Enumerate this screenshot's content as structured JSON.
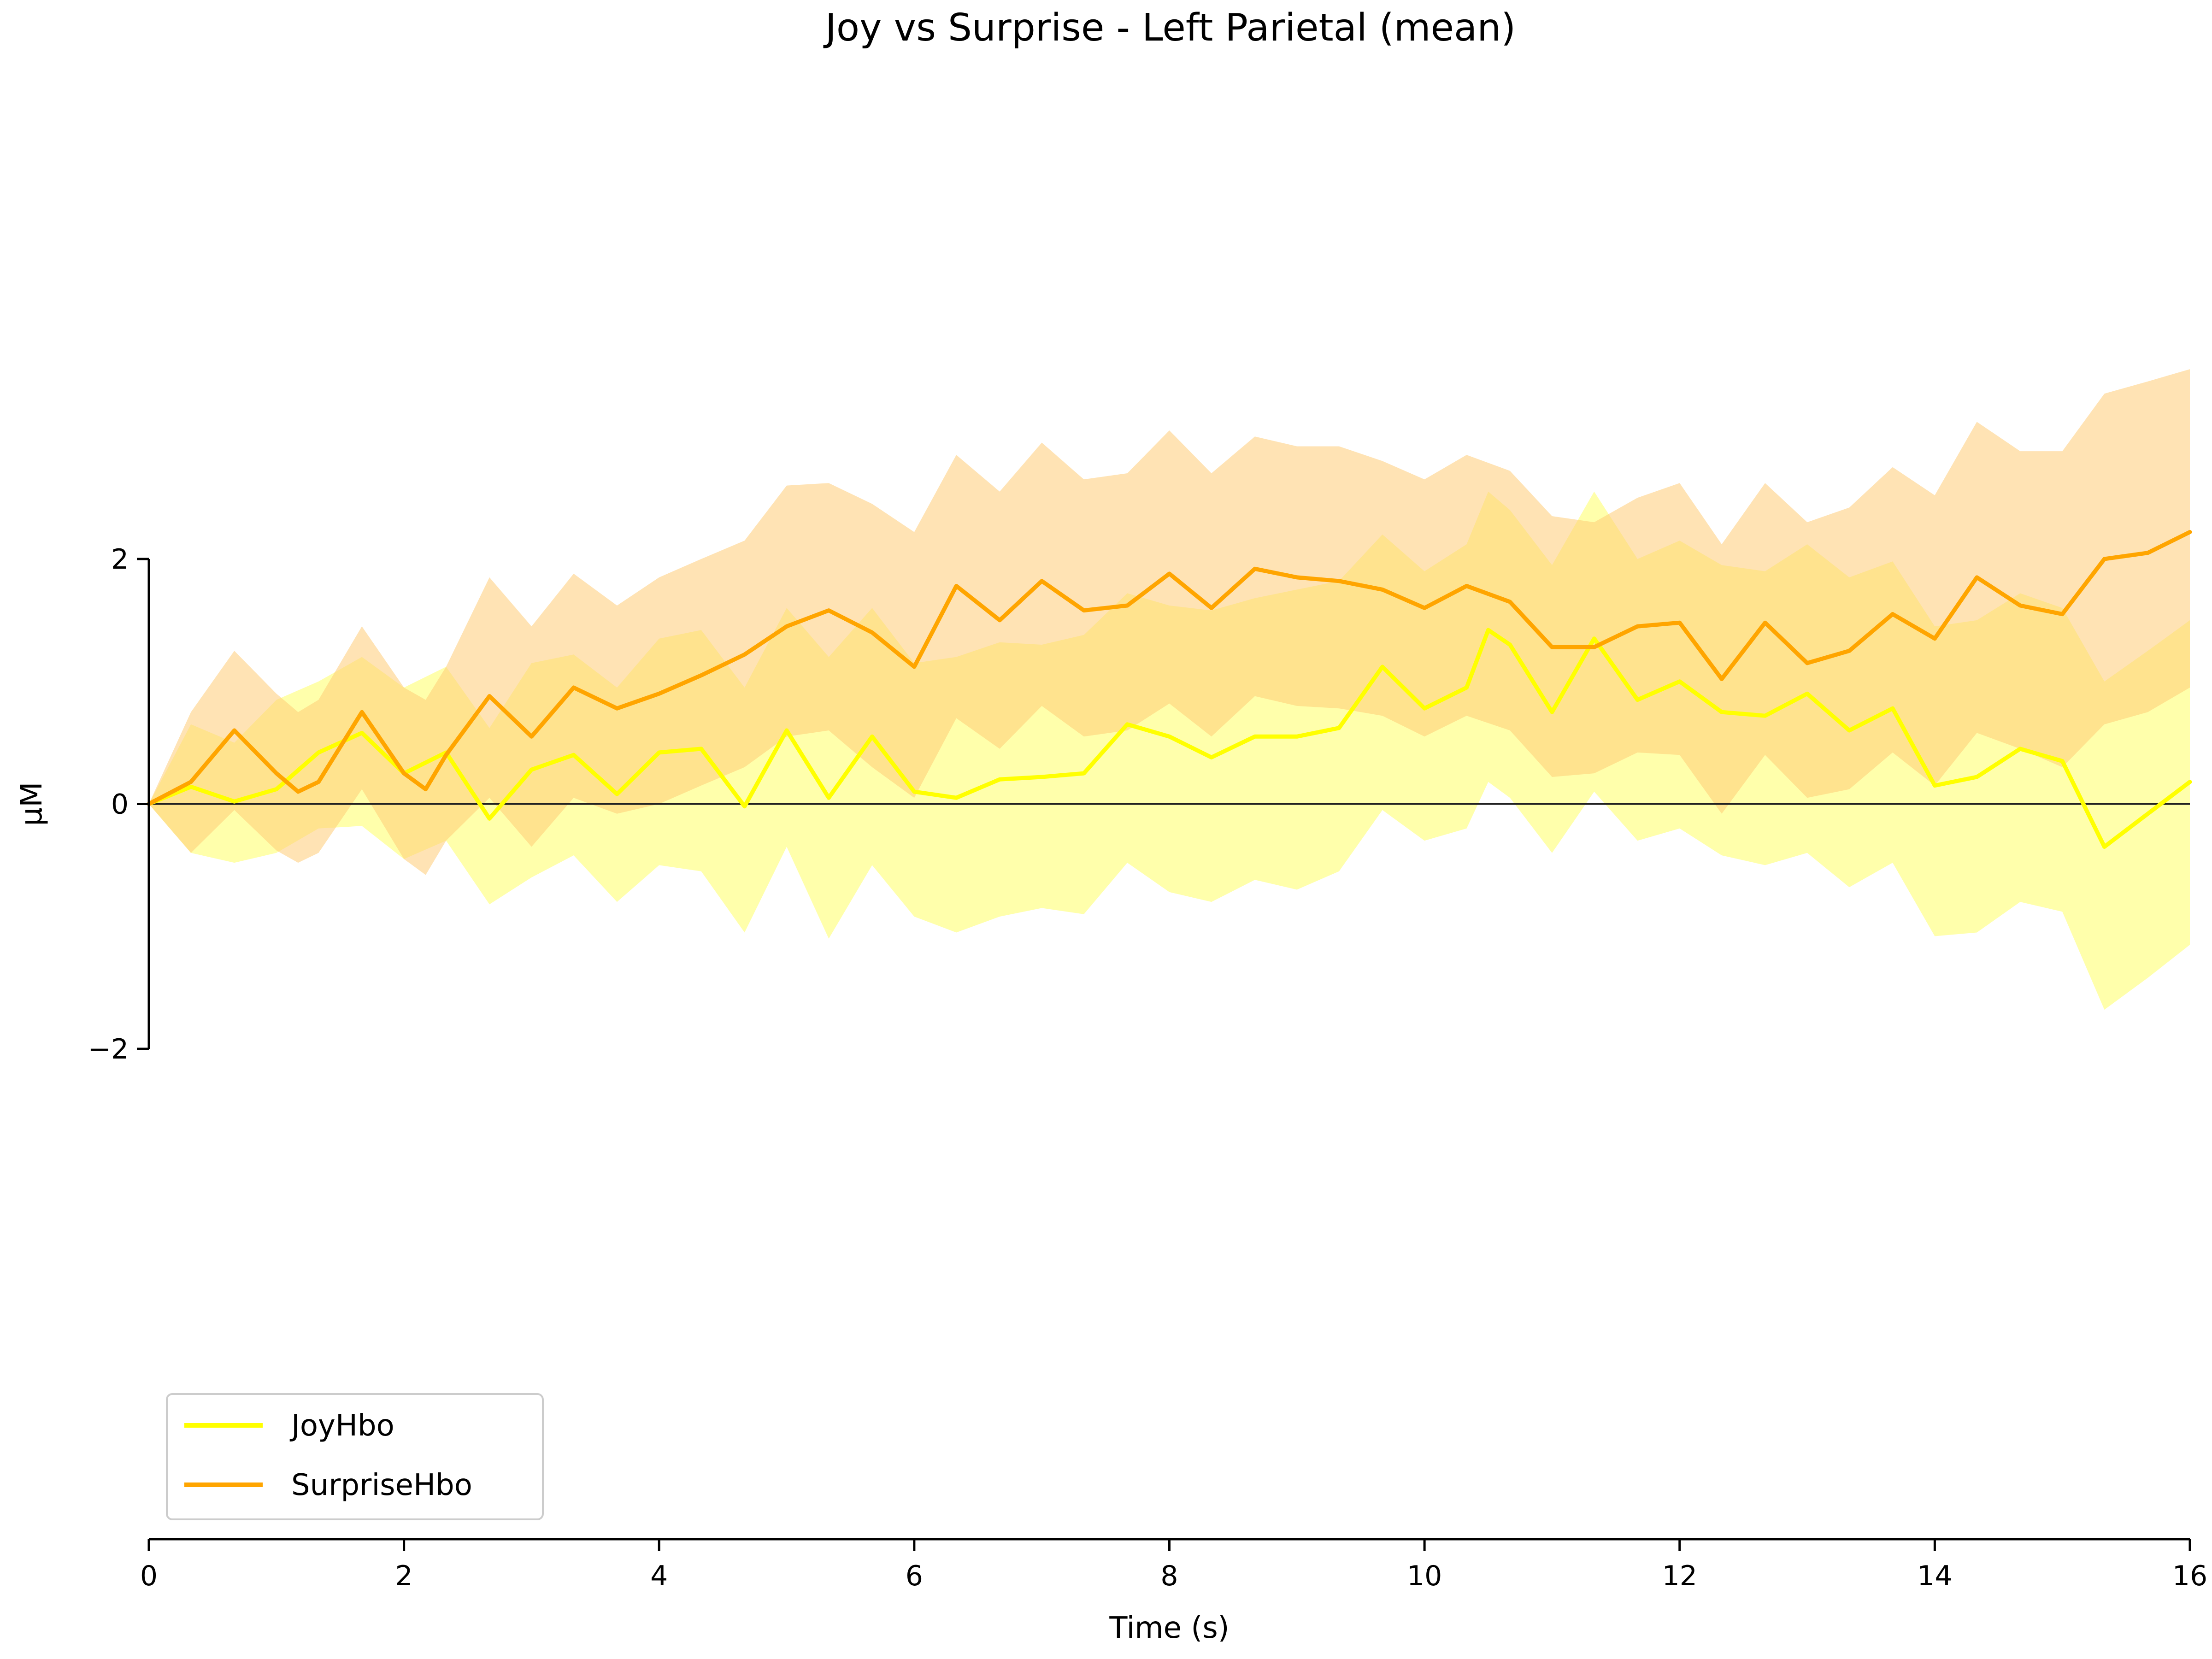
{
  "chart_data": {
    "type": "line",
    "title": "Joy vs Surprise - Left Parietal (mean)",
    "xlabel": "Time (s)",
    "ylabel": "µM",
    "xlim": [
      0,
      16
    ],
    "ylim": [
      -2,
      2
    ],
    "x_ticks": [
      "0",
      "2",
      "4",
      "6",
      "8",
      "10",
      "12",
      "14",
      "16"
    ],
    "y_ticks": [
      "−2",
      "0",
      "2"
    ],
    "zero_line": true,
    "grid": false,
    "legend": {
      "position": "bottom-left"
    },
    "series": [
      {
        "name": "JoyHbo",
        "color": "#ffff00",
        "band_color": "#ffff66",
        "points": [
          [
            0,
            0
          ],
          [
            0.33,
            0.14
          ],
          [
            0.67,
            0.02
          ],
          [
            1,
            0.12
          ],
          [
            1.33,
            0.42
          ],
          [
            1.67,
            0.58
          ],
          [
            2,
            0.25
          ],
          [
            2.33,
            0.42
          ],
          [
            2.67,
            -0.12
          ],
          [
            3,
            0.28
          ],
          [
            3.33,
            0.4
          ],
          [
            3.67,
            0.08
          ],
          [
            4,
            0.42
          ],
          [
            4.33,
            0.45
          ],
          [
            4.67,
            -0.02
          ],
          [
            5,
            0.6
          ],
          [
            5.33,
            0.05
          ],
          [
            5.67,
            0.55
          ],
          [
            6,
            0.1
          ],
          [
            6.33,
            0.05
          ],
          [
            6.67,
            0.2
          ],
          [
            7,
            0.22
          ],
          [
            7.33,
            0.25
          ],
          [
            7.67,
            0.65
          ],
          [
            8,
            0.55
          ],
          [
            8.33,
            0.38
          ],
          [
            8.67,
            0.55
          ],
          [
            9,
            0.55
          ],
          [
            9.33,
            0.62
          ],
          [
            9.67,
            1.12
          ],
          [
            10,
            0.78
          ],
          [
            10.33,
            0.95
          ],
          [
            10.5,
            1.42
          ],
          [
            10.67,
            1.3
          ],
          [
            11,
            0.75
          ],
          [
            11.33,
            1.35
          ],
          [
            11.67,
            0.85
          ],
          [
            12,
            1.0
          ],
          [
            12.33,
            0.75
          ],
          [
            12.67,
            0.72
          ],
          [
            13,
            0.9
          ],
          [
            13.33,
            0.6
          ],
          [
            13.67,
            0.78
          ],
          [
            14,
            0.15
          ],
          [
            14.33,
            0.22
          ],
          [
            14.67,
            0.45
          ],
          [
            15,
            0.35
          ],
          [
            15.33,
            -0.35
          ],
          [
            15.67,
            -0.08
          ],
          [
            16,
            0.18
          ]
        ],
        "band": [
          [
            0,
            0,
            0
          ],
          [
            0.33,
            -0.4,
            0.65
          ],
          [
            0.67,
            -0.48,
            0.5
          ],
          [
            1,
            -0.4,
            0.85
          ],
          [
            1.33,
            -0.2,
            1.0
          ],
          [
            1.67,
            -0.18,
            1.2
          ],
          [
            2,
            -0.45,
            0.95
          ],
          [
            2.33,
            -0.3,
            1.12
          ],
          [
            2.67,
            -0.82,
            0.62
          ],
          [
            3,
            -0.6,
            1.15
          ],
          [
            3.33,
            -0.42,
            1.22
          ],
          [
            3.67,
            -0.8,
            0.95
          ],
          [
            4,
            -0.5,
            1.35
          ],
          [
            4.33,
            -0.55,
            1.42
          ],
          [
            4.67,
            -1.05,
            0.95
          ],
          [
            5,
            -0.35,
            1.6
          ],
          [
            5.33,
            -1.1,
            1.2
          ],
          [
            5.67,
            -0.5,
            1.6
          ],
          [
            6,
            -0.92,
            1.15
          ],
          [
            6.33,
            -1.05,
            1.2
          ],
          [
            6.67,
            -0.92,
            1.32
          ],
          [
            7,
            -0.85,
            1.3
          ],
          [
            7.33,
            -0.9,
            1.38
          ],
          [
            7.67,
            -0.48,
            1.72
          ],
          [
            8,
            -0.72,
            1.62
          ],
          [
            8.33,
            -0.8,
            1.58
          ],
          [
            8.67,
            -0.62,
            1.68
          ],
          [
            9,
            -0.7,
            1.75
          ],
          [
            9.33,
            -0.55,
            1.82
          ],
          [
            9.67,
            -0.05,
            2.2
          ],
          [
            10,
            -0.3,
            1.9
          ],
          [
            10.33,
            -0.2,
            2.12
          ],
          [
            10.5,
            0.18,
            2.55
          ],
          [
            10.67,
            0.05,
            2.4
          ],
          [
            11,
            -0.4,
            1.95
          ],
          [
            11.33,
            0.1,
            2.55
          ],
          [
            11.67,
            -0.3,
            2.0
          ],
          [
            12,
            -0.2,
            2.15
          ],
          [
            12.33,
            -0.42,
            1.95
          ],
          [
            12.67,
            -0.5,
            1.9
          ],
          [
            13,
            -0.4,
            2.12
          ],
          [
            13.33,
            -0.68,
            1.85
          ],
          [
            13.67,
            -0.48,
            1.98
          ],
          [
            14,
            -1.08,
            1.45
          ],
          [
            14.33,
            -1.05,
            1.5
          ],
          [
            14.67,
            -0.8,
            1.72
          ],
          [
            15,
            -0.88,
            1.6
          ],
          [
            15.33,
            -1.68,
            1.0
          ],
          [
            15.67,
            -1.42,
            1.25
          ],
          [
            16,
            -1.15,
            1.5
          ]
        ]
      },
      {
        "name": "SurpriseHbo",
        "color": "#ffa500",
        "band_color": "#ffcc77",
        "points": [
          [
            0,
            0
          ],
          [
            0.33,
            0.18
          ],
          [
            0.67,
            0.6
          ],
          [
            1,
            0.25
          ],
          [
            1.17,
            0.1
          ],
          [
            1.33,
            0.18
          ],
          [
            1.67,
            0.75
          ],
          [
            2,
            0.25
          ],
          [
            2.17,
            0.12
          ],
          [
            2.33,
            0.4
          ],
          [
            2.67,
            0.88
          ],
          [
            3,
            0.55
          ],
          [
            3.33,
            0.95
          ],
          [
            3.67,
            0.78
          ],
          [
            4,
            0.9
          ],
          [
            4.33,
            1.05
          ],
          [
            4.67,
            1.22
          ],
          [
            5,
            1.45
          ],
          [
            5.33,
            1.58
          ],
          [
            5.67,
            1.4
          ],
          [
            6,
            1.12
          ],
          [
            6.33,
            1.78
          ],
          [
            6.67,
            1.5
          ],
          [
            7,
            1.82
          ],
          [
            7.33,
            1.58
          ],
          [
            7.67,
            1.62
          ],
          [
            8,
            1.88
          ],
          [
            8.33,
            1.6
          ],
          [
            8.67,
            1.92
          ],
          [
            9,
            1.85
          ],
          [
            9.33,
            1.82
          ],
          [
            9.67,
            1.75
          ],
          [
            10,
            1.6
          ],
          [
            10.33,
            1.78
          ],
          [
            10.67,
            1.65
          ],
          [
            11,
            1.28
          ],
          [
            11.33,
            1.28
          ],
          [
            11.67,
            1.45
          ],
          [
            12,
            1.48
          ],
          [
            12.33,
            1.02
          ],
          [
            12.67,
            1.48
          ],
          [
            13,
            1.15
          ],
          [
            13.33,
            1.25
          ],
          [
            13.67,
            1.55
          ],
          [
            14,
            1.35
          ],
          [
            14.33,
            1.85
          ],
          [
            14.67,
            1.62
          ],
          [
            15,
            1.55
          ],
          [
            15.33,
            2.0
          ],
          [
            15.67,
            2.05
          ],
          [
            16,
            2.22
          ]
        ],
        "band": [
          [
            0,
            0,
            0
          ],
          [
            0.33,
            -0.4,
            0.75
          ],
          [
            0.67,
            -0.05,
            1.25
          ],
          [
            1,
            -0.38,
            0.9
          ],
          [
            1.17,
            -0.48,
            0.75
          ],
          [
            1.33,
            -0.4,
            0.85
          ],
          [
            1.67,
            0.12,
            1.45
          ],
          [
            2,
            -0.45,
            0.95
          ],
          [
            2.17,
            -0.58,
            0.85
          ],
          [
            2.33,
            -0.3,
            1.12
          ],
          [
            2.67,
            0.05,
            1.85
          ],
          [
            3,
            -0.35,
            1.45
          ],
          [
            3.33,
            0.05,
            1.88
          ],
          [
            3.67,
            -0.08,
            1.62
          ],
          [
            4,
            0.0,
            1.85
          ],
          [
            4.33,
            0.15,
            2.0
          ],
          [
            4.67,
            0.3,
            2.15
          ],
          [
            5,
            0.55,
            2.6
          ],
          [
            5.33,
            0.6,
            2.62
          ],
          [
            5.67,
            0.3,
            2.45
          ],
          [
            6,
            0.05,
            2.22
          ],
          [
            6.33,
            0.7,
            2.85
          ],
          [
            6.67,
            0.45,
            2.55
          ],
          [
            7,
            0.8,
            2.95
          ],
          [
            7.33,
            0.55,
            2.65
          ],
          [
            7.67,
            0.6,
            2.7
          ],
          [
            8,
            0.82,
            3.05
          ],
          [
            8.33,
            0.55,
            2.7
          ],
          [
            8.67,
            0.88,
            3.0
          ],
          [
            9,
            0.8,
            2.92
          ],
          [
            9.33,
            0.78,
            2.92
          ],
          [
            9.67,
            0.72,
            2.8
          ],
          [
            10,
            0.55,
            2.65
          ],
          [
            10.33,
            0.72,
            2.85
          ],
          [
            10.67,
            0.6,
            2.72
          ],
          [
            11,
            0.22,
            2.35
          ],
          [
            11.33,
            0.25,
            2.3
          ],
          [
            11.67,
            0.42,
            2.5
          ],
          [
            12,
            0.4,
            2.62
          ],
          [
            12.33,
            -0.08,
            2.12
          ],
          [
            12.67,
            0.4,
            2.62
          ],
          [
            13,
            0.05,
            2.3
          ],
          [
            13.33,
            0.12,
            2.42
          ],
          [
            13.67,
            0.42,
            2.75
          ],
          [
            14,
            0.15,
            2.52
          ],
          [
            14.33,
            0.58,
            3.12
          ],
          [
            14.67,
            0.45,
            2.88
          ],
          [
            15,
            0.3,
            2.88
          ],
          [
            15.33,
            0.65,
            3.35
          ],
          [
            15.67,
            0.75,
            3.45
          ],
          [
            16,
            0.95,
            3.55
          ]
        ]
      }
    ]
  }
}
